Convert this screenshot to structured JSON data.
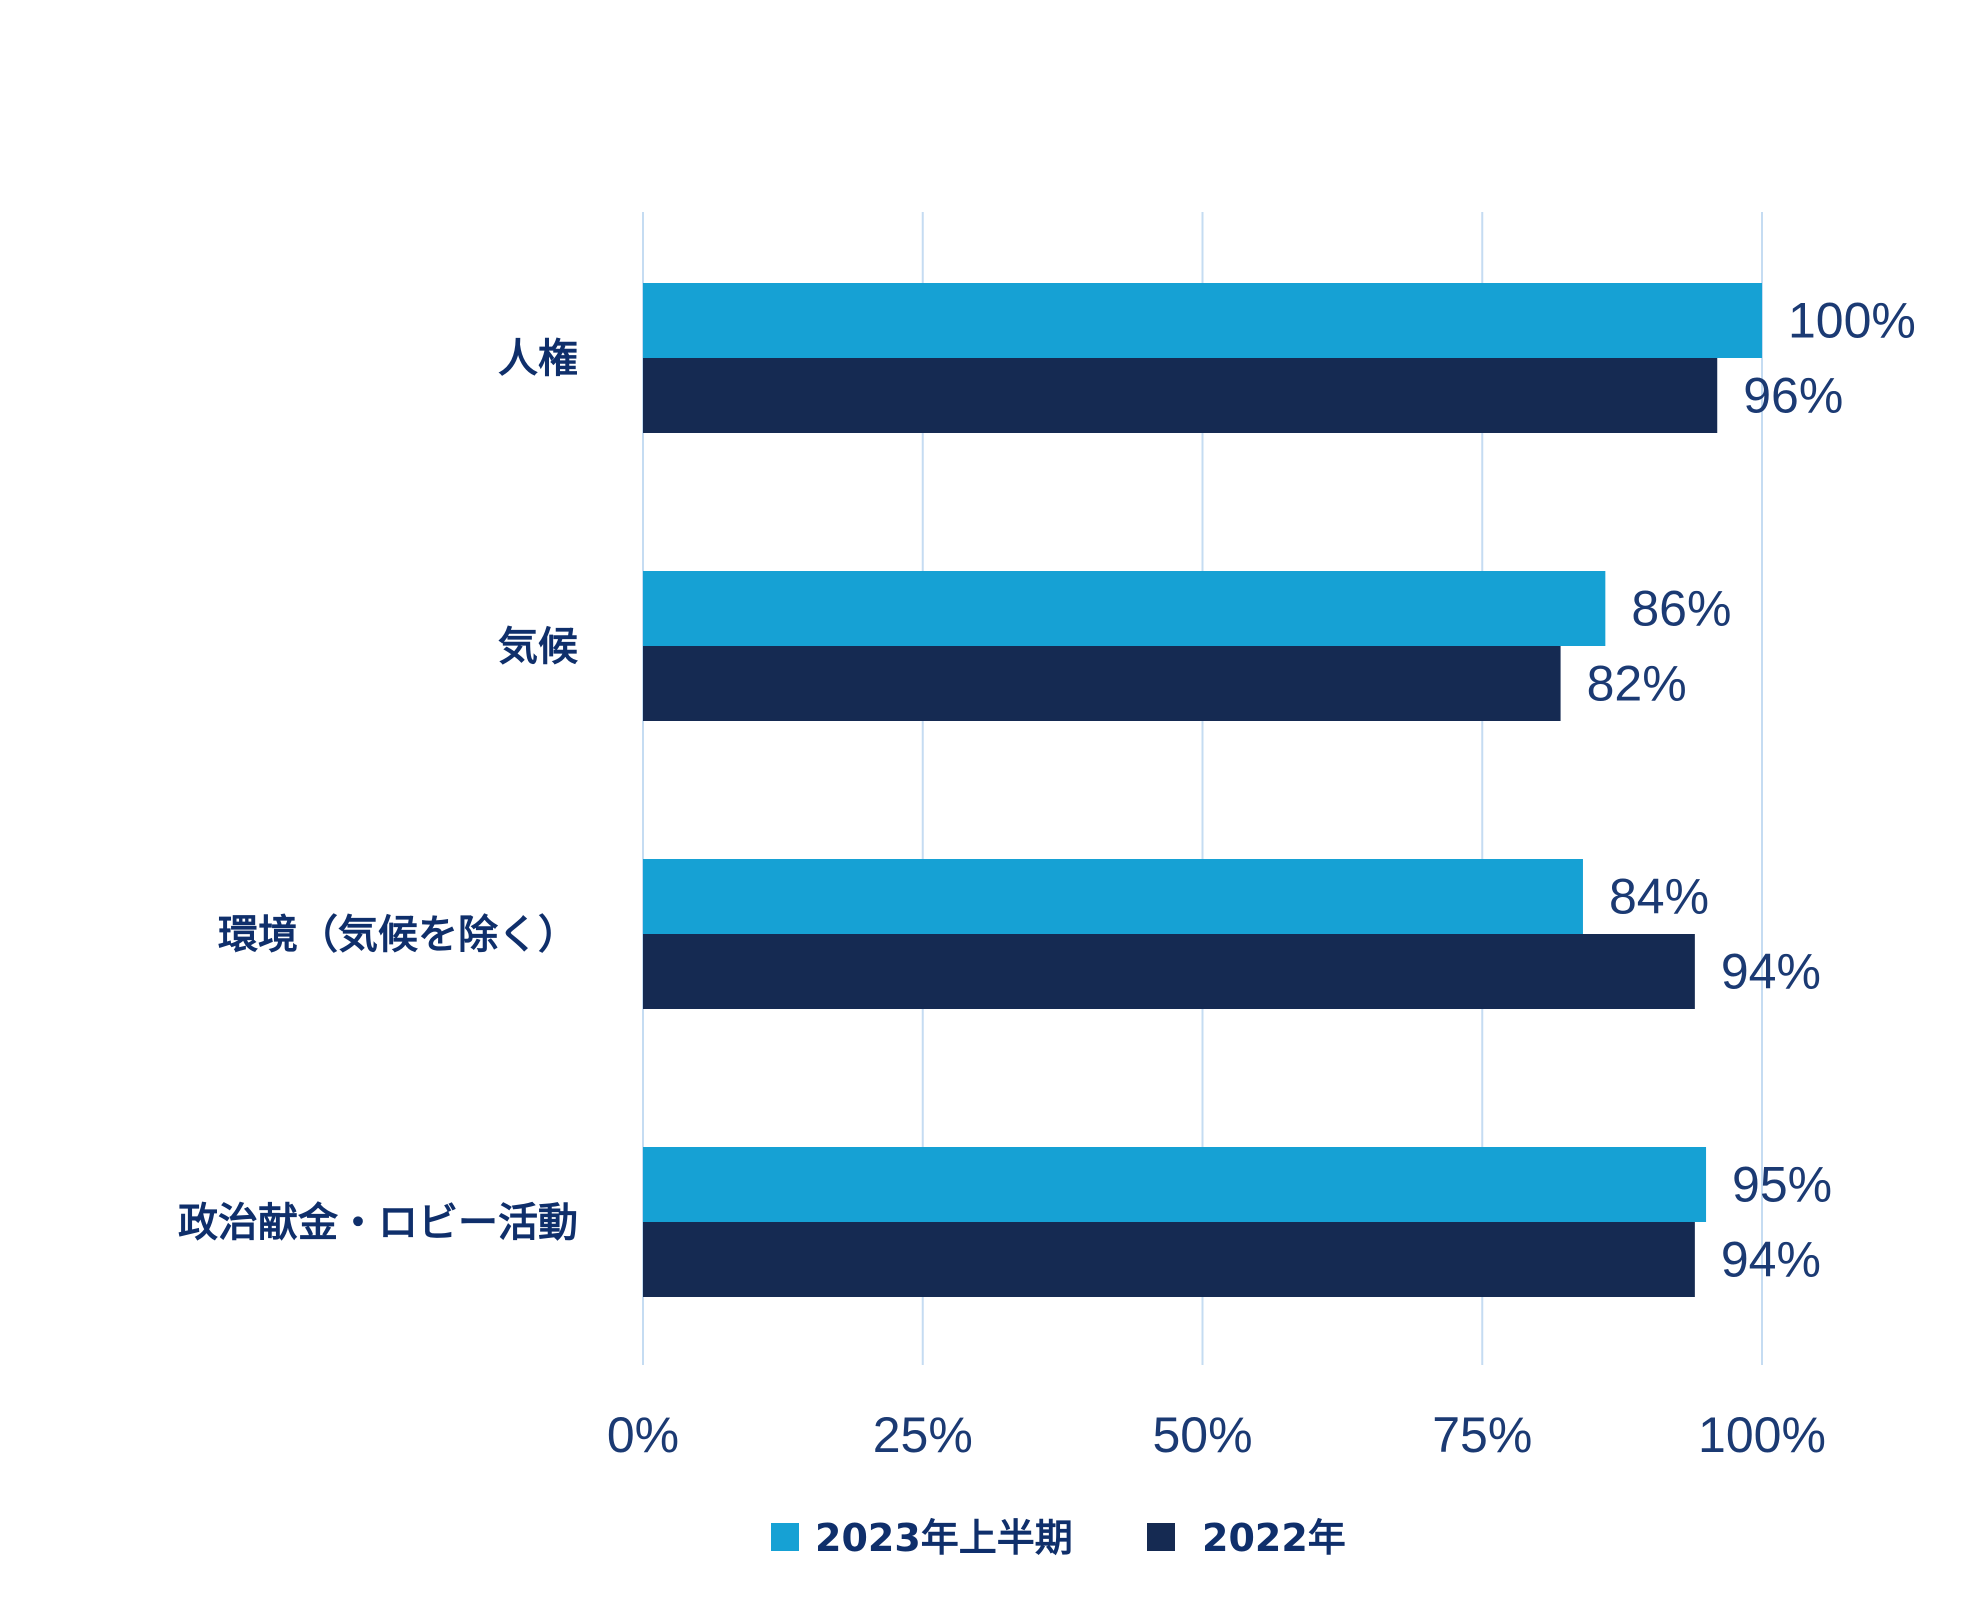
{
  "chart_data": {
    "type": "bar",
    "orientation": "horizontal",
    "categories": [
      "人権",
      "気候",
      "環境（気候を除く）",
      "政治献金・ロビー活動"
    ],
    "series": [
      {
        "name": "2023年上半期",
        "color": "#16a1d4",
        "values": [
          100,
          86,
          84,
          95
        ]
      },
      {
        "name": "2022年",
        "color": "#152a52",
        "values": [
          96,
          82,
          94,
          94
        ]
      }
    ],
    "data_labels": [
      [
        "100%",
        "86%",
        "84%",
        "95%"
      ],
      [
        "96%",
        "82%",
        "94%",
        "94%"
      ]
    ],
    "xlim": [
      0,
      100
    ],
    "xticks": [
      0,
      25,
      50,
      75,
      100
    ],
    "xtick_labels": [
      "0%",
      "25%",
      "50%",
      "75%",
      "100%"
    ],
    "grid": "vertical",
    "legend_position": "bottom-center"
  }
}
